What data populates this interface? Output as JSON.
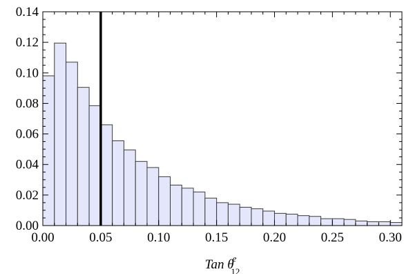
{
  "chart_data": {
    "type": "bar",
    "title": "",
    "xlabel": "Tan θ",
    "xlabel_sup": "e",
    "xlabel_sub": "12",
    "ylabel": "",
    "xlim": [
      0.0,
      0.31
    ],
    "ylim": [
      0.0,
      0.14
    ],
    "x_ticks": [
      "0.00",
      "0.05",
      "0.10",
      "0.15",
      "0.20",
      "0.25",
      "0.30"
    ],
    "y_ticks": [
      "0.00",
      "0.02",
      "0.04",
      "0.06",
      "0.08",
      "0.10",
      "0.12",
      "0.14"
    ],
    "bin_width": 0.01,
    "bin_starts": [
      0.0,
      0.01,
      0.02,
      0.03,
      0.04,
      0.05,
      0.06,
      0.07,
      0.08,
      0.09,
      0.1,
      0.11,
      0.12,
      0.13,
      0.14,
      0.15,
      0.16,
      0.17,
      0.18,
      0.19,
      0.2,
      0.21,
      0.22,
      0.23,
      0.24,
      0.25,
      0.26,
      0.27,
      0.28,
      0.29,
      0.3
    ],
    "values": [
      0.098,
      0.1195,
      0.107,
      0.0905,
      0.0785,
      0.066,
      0.0555,
      0.0495,
      0.042,
      0.038,
      0.032,
      0.0265,
      0.0245,
      0.022,
      0.018,
      0.015,
      0.014,
      0.012,
      0.011,
      0.0095,
      0.008,
      0.0075,
      0.0065,
      0.006,
      0.0045,
      0.0045,
      0.004,
      0.003,
      0.0025,
      0.0025,
      0.002
    ],
    "reference_line_x": 0.05,
    "colors": {
      "bar_fill": "#e4e7fb",
      "bar_stroke": "#3a3a3a",
      "reference_line": "#000000",
      "frame": "#000000"
    },
    "grid": false,
    "legend": "none"
  }
}
